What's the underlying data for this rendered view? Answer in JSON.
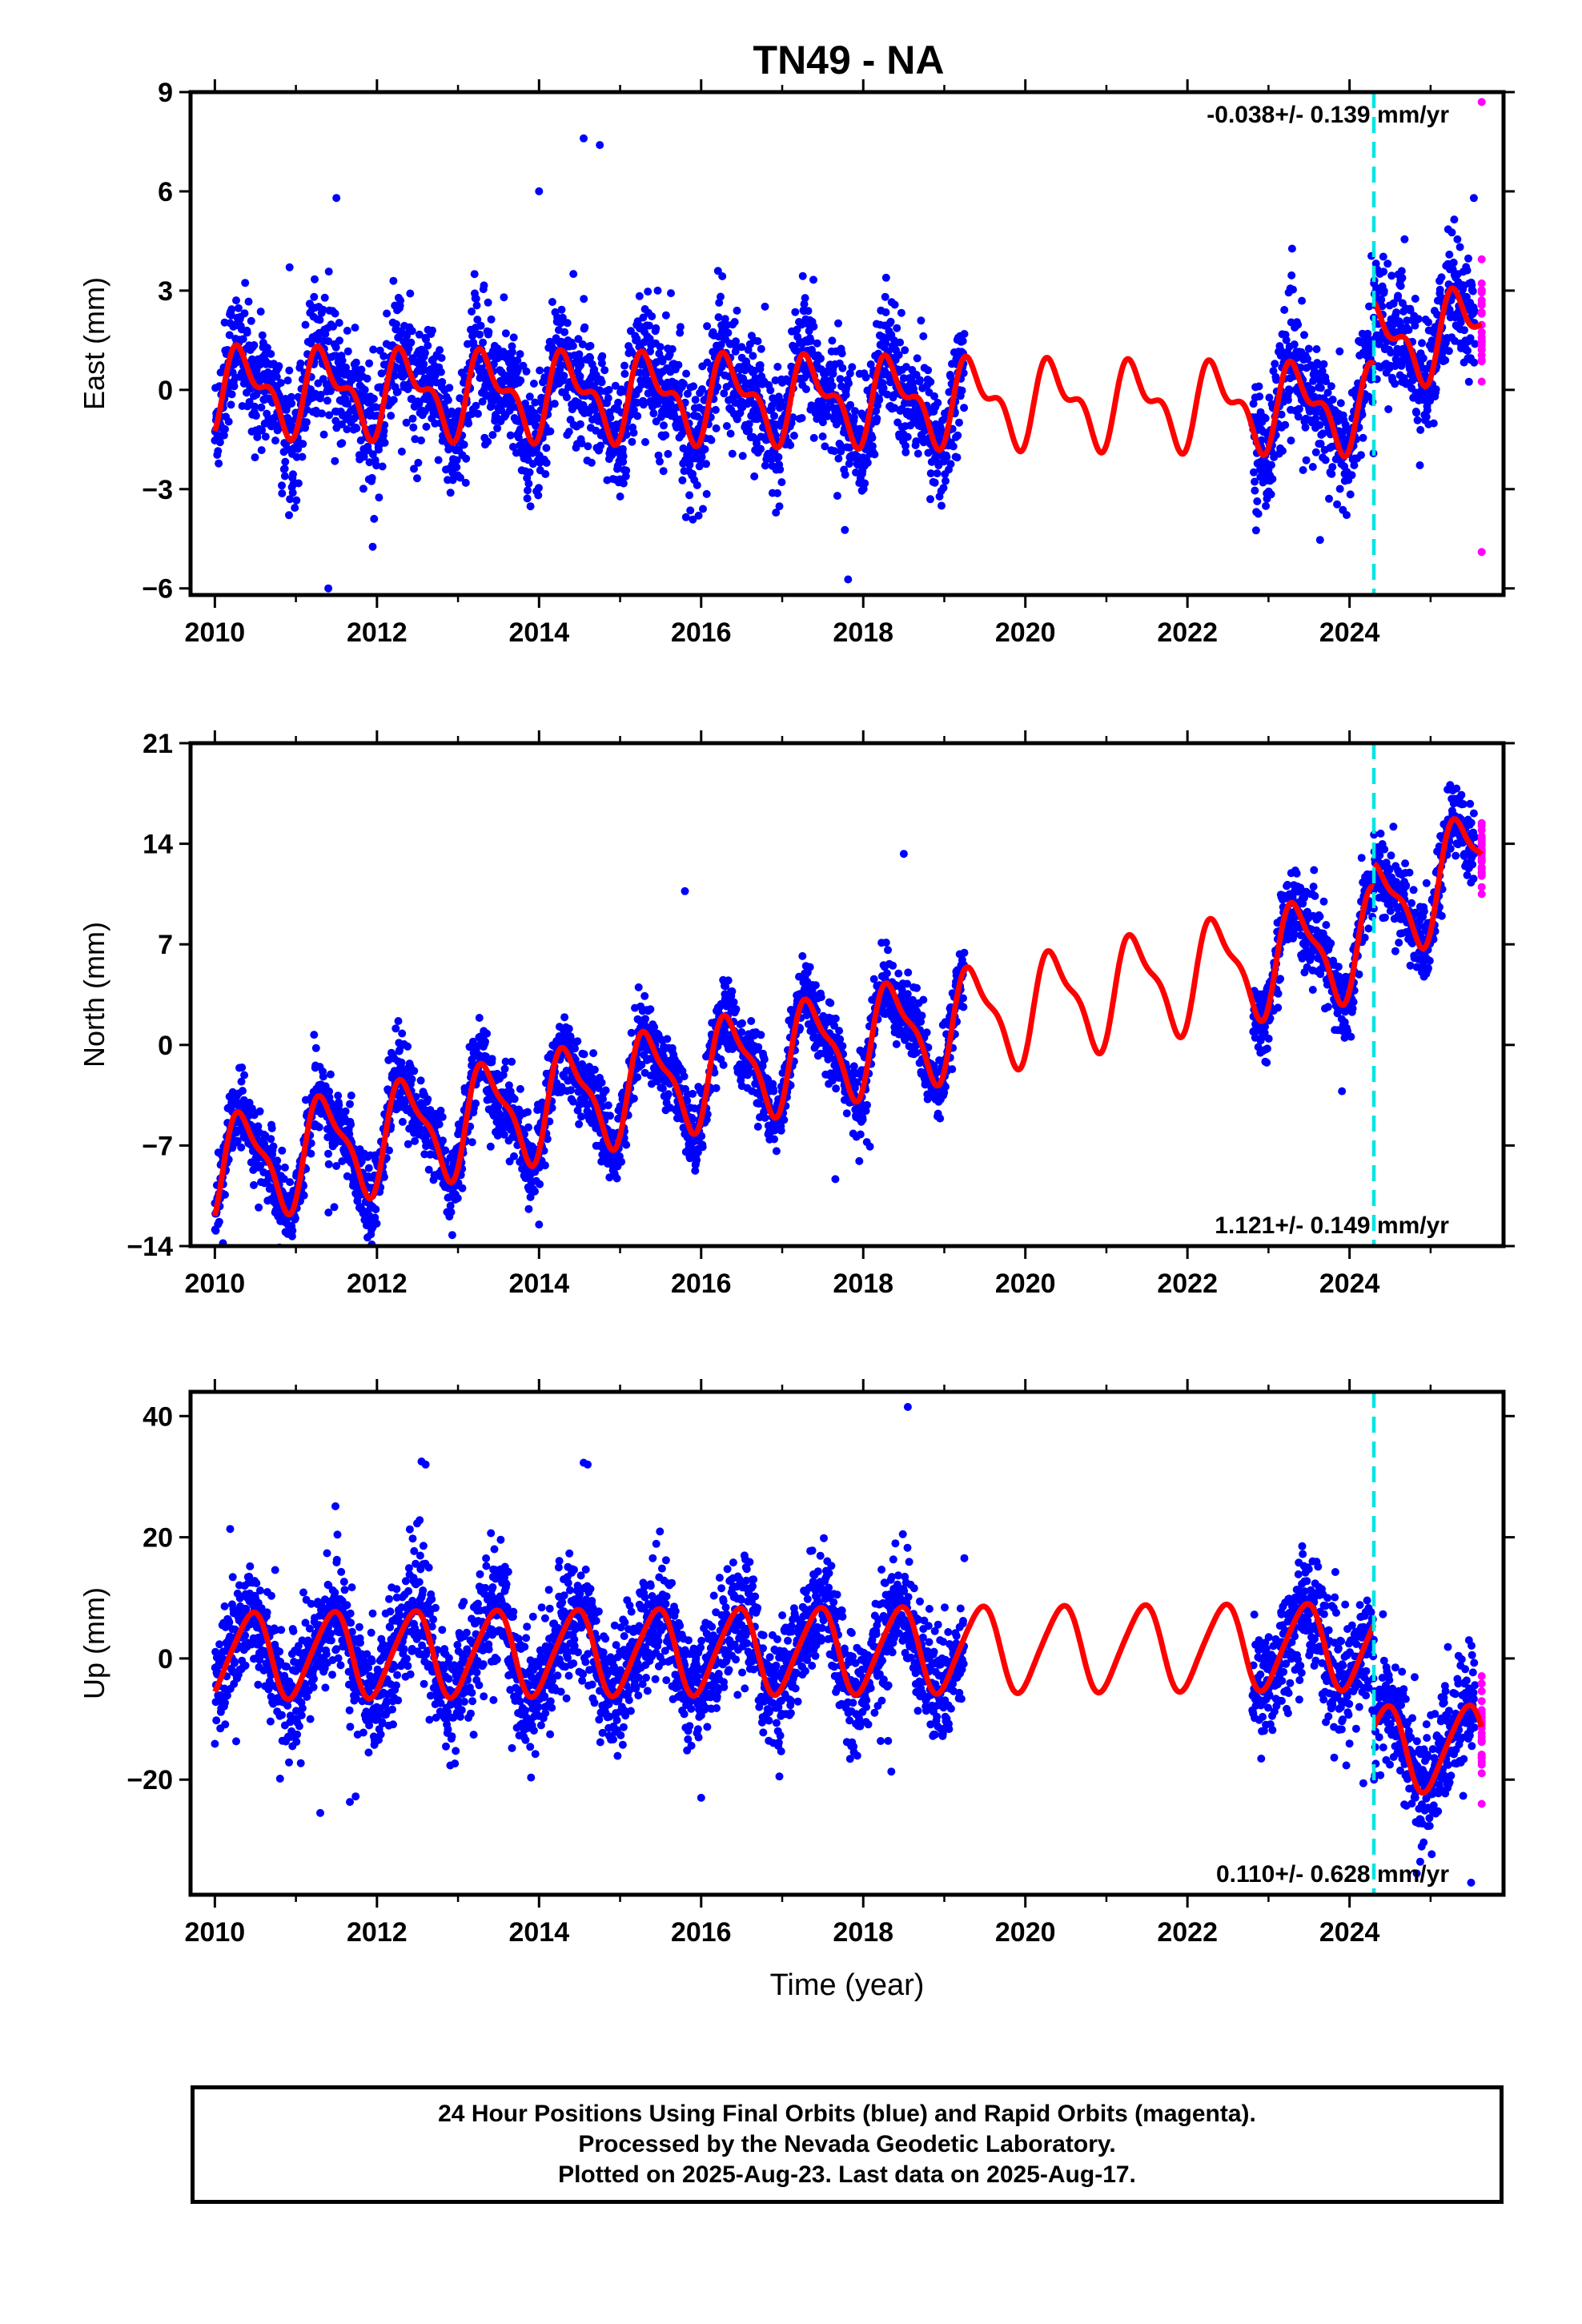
{
  "title": "TN49 - NA",
  "colors": {
    "final_orbits": "#0000ff",
    "rapid_orbits": "#ff00ff",
    "model": "#ff0000",
    "event_line": "#00e5e5"
  },
  "chart_data": [
    {
      "type": "scatter",
      "component": "east",
      "ylabel": "East (mm)",
      "ylim": [
        -6.2,
        9
      ],
      "yticks": [
        9,
        6,
        3,
        0,
        -3,
        -6
      ],
      "xlim": [
        2009.7,
        2025.9
      ],
      "xticks": [
        2010,
        2012,
        2014,
        2016,
        2018,
        2020,
        2022,
        2024
      ],
      "rate_label": "-0.038+/- 0.139 mm/yr",
      "rate_label_position": "top-right",
      "event_line_year": 2024.3,
      "final_orbit_spans": [
        [
          2010.0,
          2019.25
        ],
        [
          2022.8,
          2025.55
        ]
      ],
      "rapid_orbit_span": [
        2025.55,
        2025.63
      ],
      "trend_mm_per_yr": -0.038,
      "model": {
        "offset_at_2010": 0,
        "annual_sin": 0.8,
        "annual_cos": -0.7,
        "semiannual_sin": 0.2,
        "semiannual_cos": -0.55,
        "step_at_event": 1.9,
        "post_event_extra_trend": 0.4
      },
      "scatter_sd": 0.9,
      "outliers": [
        [
          2014.55,
          7.6
        ],
        [
          2014.75,
          7.4
        ],
        [
          2011.4,
          -6.0
        ],
        [
          2011.5,
          5.8
        ],
        [
          2014.0,
          6.0
        ],
        [
          2025.63,
          8.7
        ],
        [
          2025.63,
          -4.9
        ]
      ]
    },
    {
      "type": "scatter",
      "component": "north",
      "ylabel": "North (mm)",
      "ylim": [
        -14,
        21
      ],
      "yticks": [
        21,
        14,
        7,
        0,
        -7,
        -14
      ],
      "xlim": [
        2009.7,
        2025.9
      ],
      "xticks": [
        2010,
        2012,
        2014,
        2016,
        2018,
        2020,
        2022,
        2024
      ],
      "rate_label": "1.121+/- 0.149 mm/yr",
      "rate_label_position": "bottom-right",
      "event_line_year": 2024.3,
      "final_orbit_spans": [
        [
          2010.0,
          2019.25
        ],
        [
          2022.8,
          2025.55
        ]
      ],
      "rapid_orbit_span": [
        2025.55,
        2025.63
      ],
      "trend_mm_per_yr": 1.121,
      "model": {
        "offset_at_2010": -8.7,
        "annual_sin": 2.6,
        "annual_cos": -2.2,
        "semiannual_sin": 0.5,
        "semiannual_cos": -1.0,
        "step_at_event": 1.6,
        "post_event_extra_trend": 2.0
      },
      "scatter_sd": 1.3,
      "outliers": [
        [
          2010.1,
          -13.8
        ],
        [
          2014.0,
          -12.5
        ],
        [
          2018.5,
          13.3
        ],
        [
          2015.8,
          10.7
        ],
        [
          2025.63,
          10.5
        ]
      ]
    },
    {
      "type": "scatter",
      "component": "up",
      "ylabel": "Up (mm)",
      "xlabel": "Time (year)",
      "ylim": [
        -39,
        44
      ],
      "yticks": [
        40,
        20,
        0,
        -20
      ],
      "xlim": [
        2009.7,
        2025.9
      ],
      "xticks": [
        2010,
        2012,
        2014,
        2016,
        2018,
        2020,
        2022,
        2024
      ],
      "rate_label": "0.110+/- 0.628 mm/yr",
      "rate_label_position": "bottom-right",
      "event_line_year": 2024.3,
      "final_orbit_spans": [
        [
          2010.0,
          2019.25
        ],
        [
          2022.8,
          2025.55
        ]
      ],
      "rapid_orbit_span": [
        2025.55,
        2025.63
      ],
      "trend_mm_per_yr": 0.11,
      "model": {
        "offset_at_2010": 0.5,
        "annual_sin": 2.5,
        "annual_cos": -6.5,
        "semiannual_sin": 0.8,
        "semiannual_cos": 0.5,
        "step_at_event": -17.0,
        "post_event_extra_trend": 0.0
      },
      "scatter_sd": 4.8,
      "outliers": [
        [
          2012.55,
          32.5
        ],
        [
          2012.6,
          32.0
        ],
        [
          2014.55,
          32.3
        ],
        [
          2014.6,
          32.0
        ],
        [
          2018.55,
          41.5
        ],
        [
          2011.3,
          -25.5
        ],
        [
          2016.0,
          -23.0
        ],
        [
          2025.5,
          -37.0
        ]
      ]
    }
  ],
  "footer": {
    "line1": "24 Hour Positions Using Final Orbits (blue) and Rapid Orbits (magenta).",
    "line2": "Processed by the Nevada Geodetic Laboratory.",
    "line3": "Plotted on 2025-Aug-23. Last data on 2025-Aug-17."
  }
}
